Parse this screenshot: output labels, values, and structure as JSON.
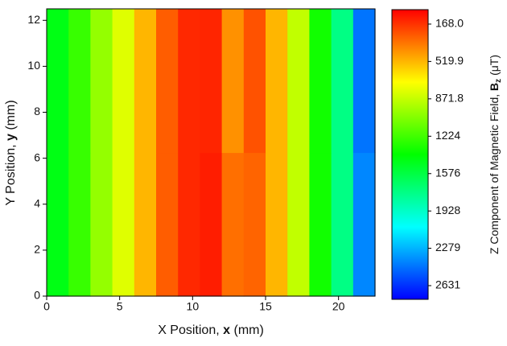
{
  "chart_data": {
    "type": "heatmap",
    "xlabel": {
      "text": "X Position, ",
      "symbol": "x",
      "unit": "(mm)"
    },
    "ylabel": {
      "text": "Y Position, ",
      "symbol": "y",
      "unit": "(mm)"
    },
    "colorbar_label": {
      "text": "Z Component of Magnetic Field, ",
      "symbol": "B",
      "subscript": "z",
      "unit": "(μT)"
    },
    "x": [
      0.75,
      2.25,
      3.75,
      5.25,
      6.75,
      8.25,
      9.75,
      11.25,
      12.75,
      14.25,
      15.75,
      17.25,
      18.75,
      20.25,
      21.75
    ],
    "y": [
      3.125,
      9.375
    ],
    "z": [
      [
        1450,
        1250,
        1000,
        800,
        520,
        280,
        140,
        110,
        330,
        300,
        520,
        880,
        1350,
        1750,
        2400
      ],
      [
        1450,
        1250,
        1000,
        800,
        520,
        280,
        140,
        130,
        420,
        250,
        520,
        880,
        1350,
        1750,
        2450
      ]
    ],
    "xlim": [
      0,
      22.5
    ],
    "xticks": [
      0,
      5,
      10,
      15,
      20
    ],
    "ylim": [
      0,
      12.5
    ],
    "yticks": [
      0,
      2,
      4,
      6,
      8,
      10,
      12
    ],
    "clim": [
      32,
      2760
    ],
    "cticks": [
      {
        "value": 168,
        "label": "168.0"
      },
      519.9,
      871.8,
      1224,
      1576,
      1928,
      2279,
      2631
    ],
    "colormap": "jet-reversed"
  }
}
